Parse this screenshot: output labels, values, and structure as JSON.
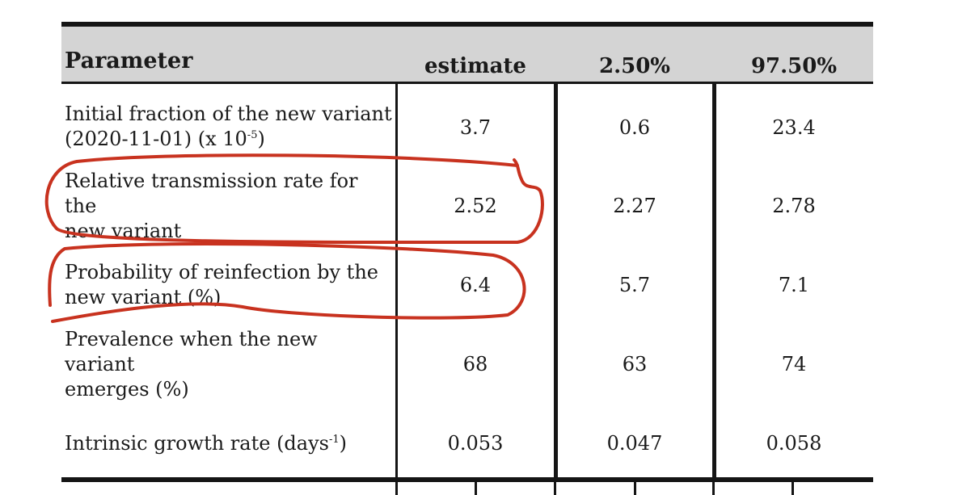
{
  "table": {
    "headers": {
      "parameter": "Parameter",
      "estimate": "estimate",
      "low": "2.50%",
      "high": "97.50%"
    },
    "rows": [
      {
        "param_line1": "Initial fraction of the new variant",
        "param_line2_pre": "(2020-11-01) (x 10",
        "param_line2_sup": "-5",
        "param_line2_post": ")",
        "estimate": "3.7",
        "low": "0.6",
        "high": "23.4"
      },
      {
        "param_line1": "Relative transmission rate for the",
        "param_line2": "new variant",
        "estimate": "2.52",
        "low": "2.27",
        "high": "2.78"
      },
      {
        "param_line1": "Probability of reinfection by the",
        "param_line2": "new variant (%)",
        "estimate": "6.4",
        "low": "5.7",
        "high": "7.1"
      },
      {
        "param_line1": "Prevalence when the new variant",
        "param_line2": "emerges (%)",
        "estimate": "68",
        "low": "63",
        "high": "74"
      },
      {
        "param_pre": "Intrinsic growth rate (days",
        "param_sup": "-1",
        "param_post": ")",
        "estimate": "0.053",
        "low": "0.047",
        "high": "0.058"
      }
    ]
  },
  "annotations": {
    "color": "#c8321f",
    "circled_rows": [
      "Relative transmission rate for the new variant",
      "Probability of reinfection by the new variant (%)"
    ]
  }
}
